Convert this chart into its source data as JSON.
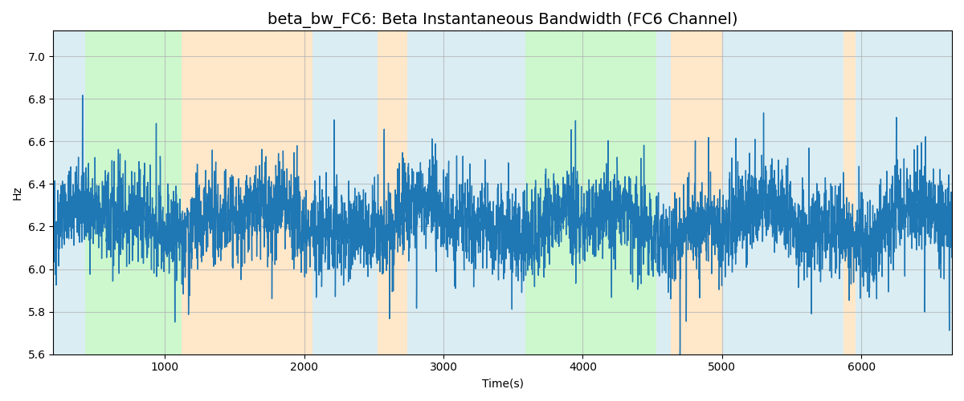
{
  "title": "beta_bw_FC6: Beta Instantaneous Bandwidth (FC6 Channel)",
  "xlabel": "Time(s)",
  "ylabel": "Hz",
  "ylim": [
    5.6,
    7.12
  ],
  "xlim": [
    200,
    6650
  ],
  "bg_regions": [
    {
      "xmin": 200,
      "xmax": 430,
      "color": "#add8e6",
      "alpha": 0.45
    },
    {
      "xmin": 430,
      "xmax": 1120,
      "color": "#90ee90",
      "alpha": 0.45
    },
    {
      "xmin": 1120,
      "xmax": 2060,
      "color": "#ffd59e",
      "alpha": 0.55
    },
    {
      "xmin": 2060,
      "xmax": 2530,
      "color": "#add8e6",
      "alpha": 0.45
    },
    {
      "xmin": 2530,
      "xmax": 2740,
      "color": "#ffd59e",
      "alpha": 0.55
    },
    {
      "xmin": 2740,
      "xmax": 3530,
      "color": "#add8e6",
      "alpha": 0.45
    },
    {
      "xmin": 3530,
      "xmax": 3590,
      "color": "#add8e6",
      "alpha": 0.45
    },
    {
      "xmin": 3590,
      "xmax": 3650,
      "color": "#90ee90",
      "alpha": 0.45
    },
    {
      "xmin": 3650,
      "xmax": 4530,
      "color": "#90ee90",
      "alpha": 0.45
    },
    {
      "xmin": 4530,
      "xmax": 4630,
      "color": "#add8e6",
      "alpha": 0.45
    },
    {
      "xmin": 4630,
      "xmax": 5000,
      "color": "#ffd59e",
      "alpha": 0.55
    },
    {
      "xmin": 5000,
      "xmax": 5150,
      "color": "#add8e6",
      "alpha": 0.45
    },
    {
      "xmin": 5150,
      "xmax": 5870,
      "color": "#add8e6",
      "alpha": 0.45
    },
    {
      "xmin": 5870,
      "xmax": 5960,
      "color": "#ffd59e",
      "alpha": 0.55
    },
    {
      "xmin": 5960,
      "xmax": 6650,
      "color": "#add8e6",
      "alpha": 0.45
    }
  ],
  "line_color": "#1f77b4",
  "line_width": 1.0,
  "seed": 42,
  "base_value": 6.22,
  "signal_std": 0.14,
  "title_fontsize": 14,
  "grid_color": "#b0b0b0",
  "grid_alpha": 0.7,
  "figsize": [
    12.0,
    5.0
  ],
  "dpi": 100
}
